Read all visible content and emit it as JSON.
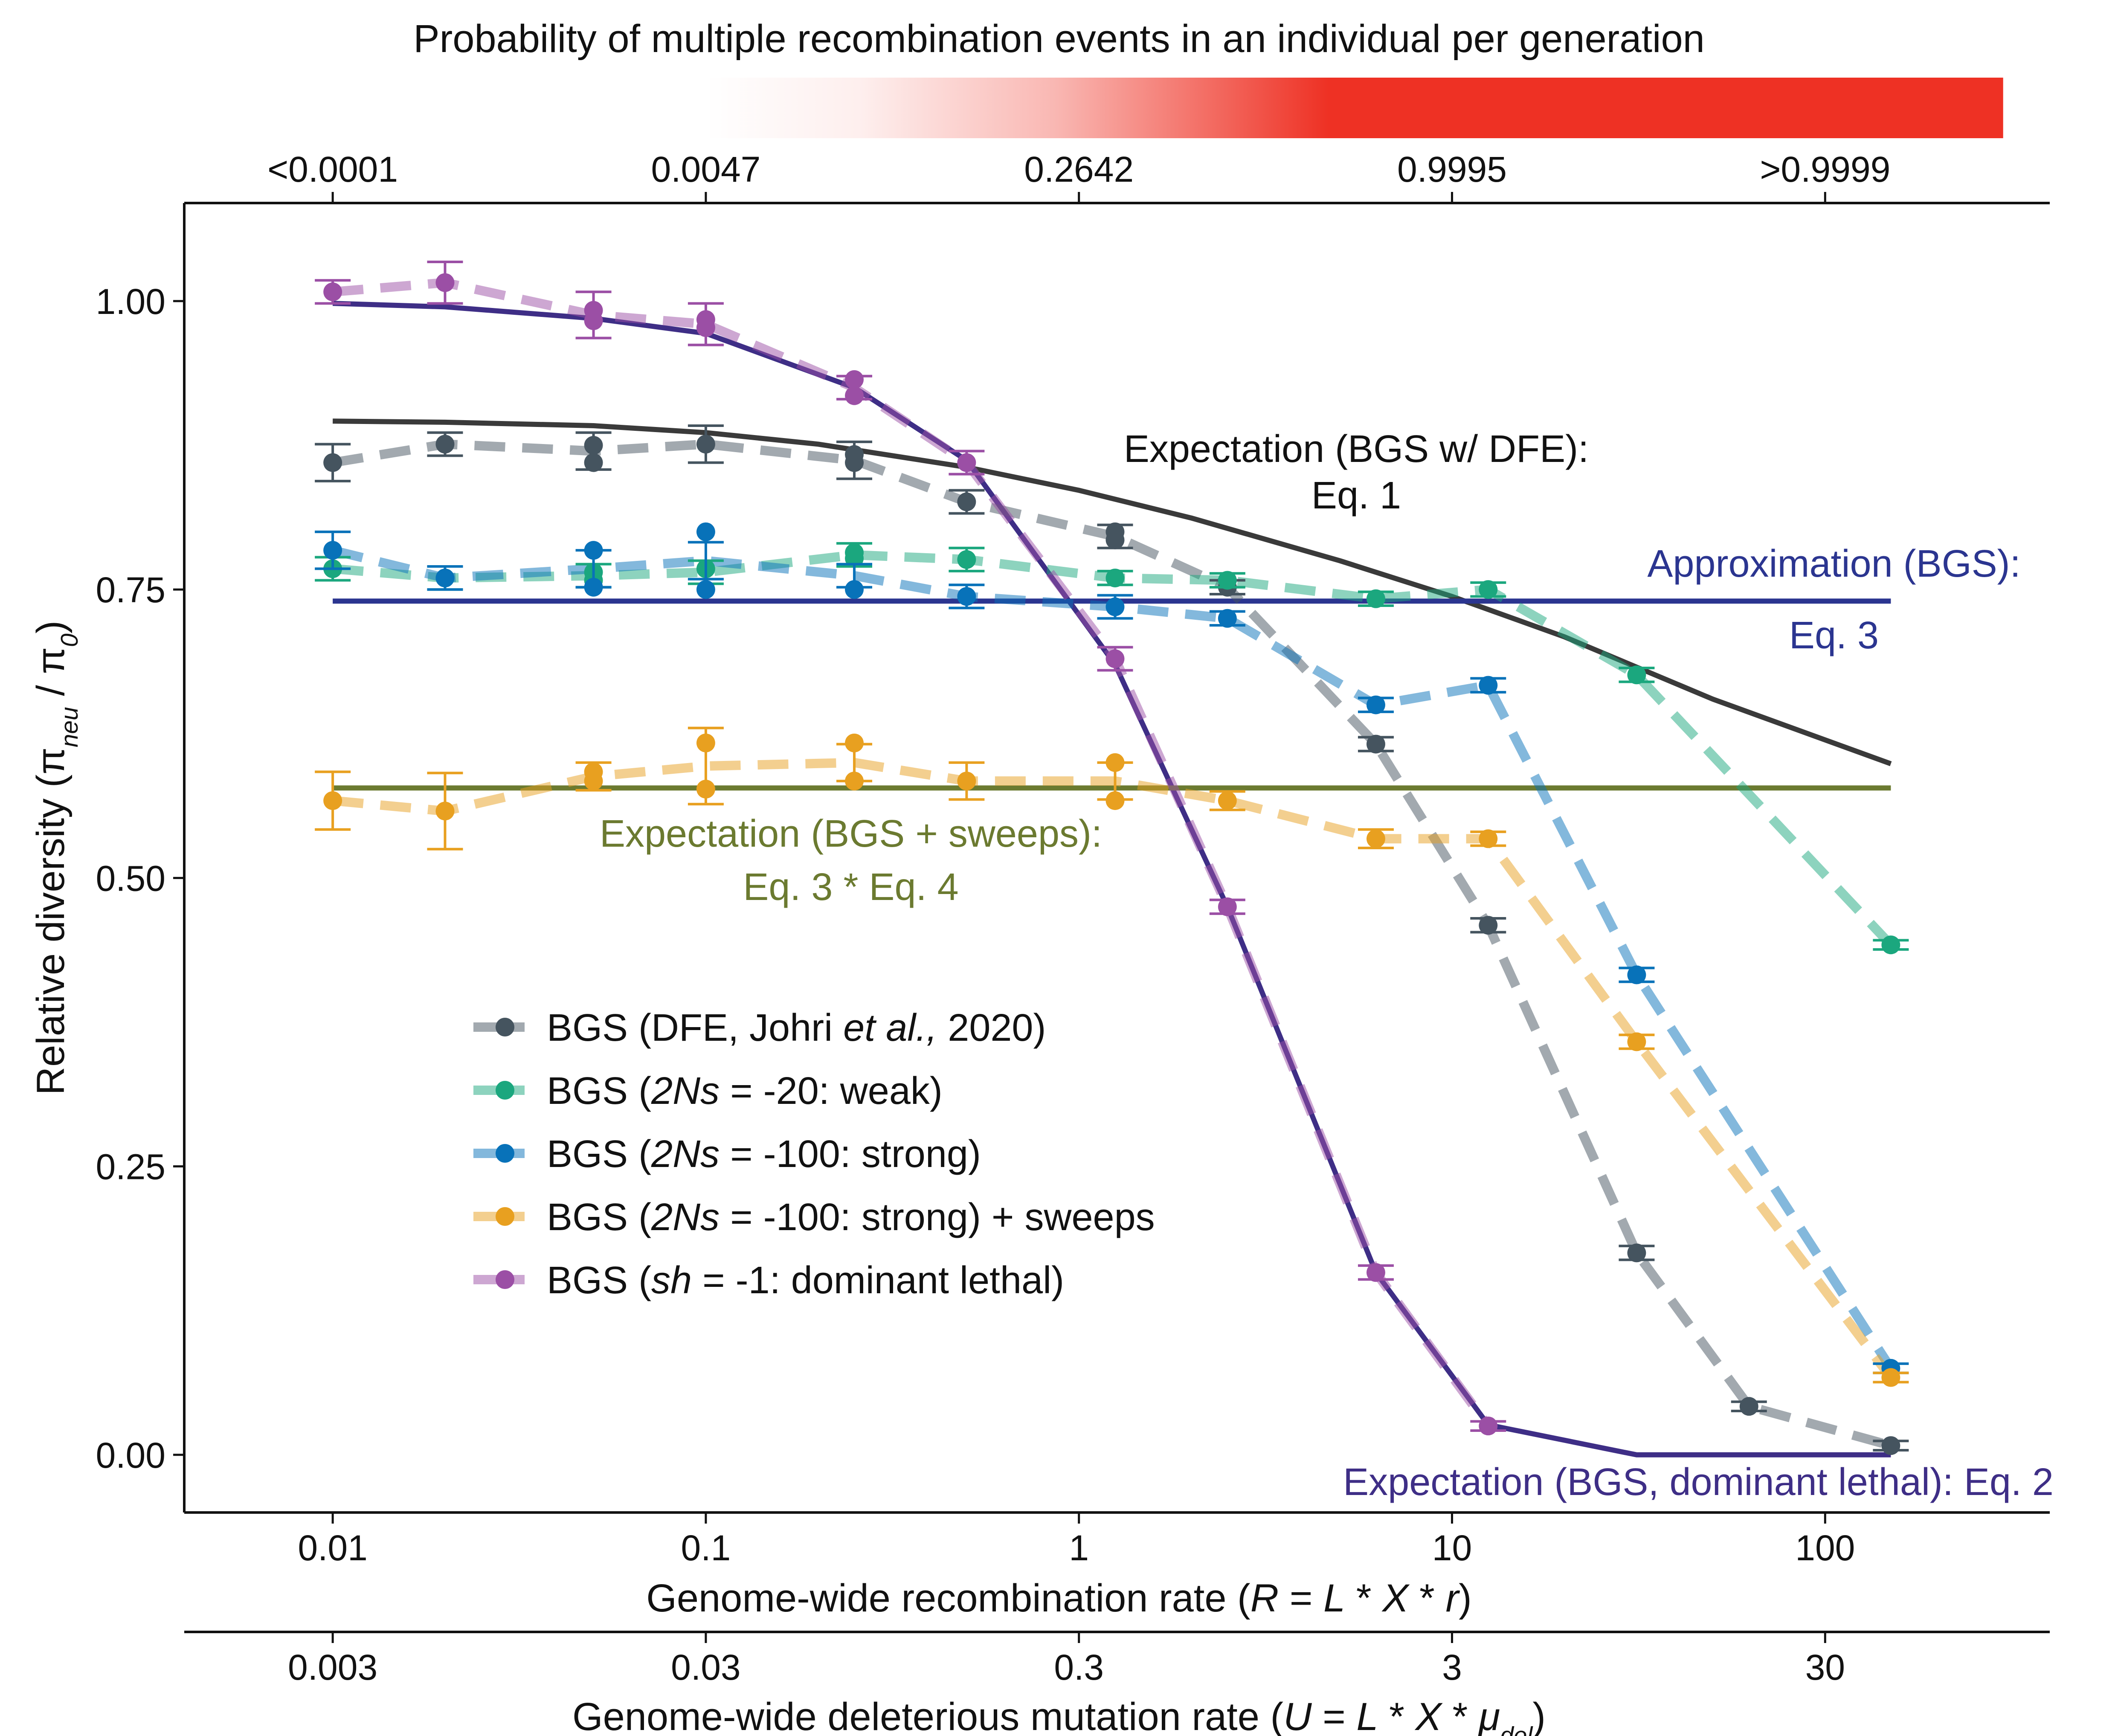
{
  "chart_data": {
    "type": "line",
    "top_title": "Probability of multiple recombination events in an individual per generation",
    "top_ticks": [
      {
        "x": 0.01,
        "label": "<0.0001"
      },
      {
        "x": 0.1,
        "label": "0.0047"
      },
      {
        "x": 1,
        "label": "0.2642"
      },
      {
        "x": 10,
        "label": "0.9995"
      },
      {
        "x": 100,
        "label": ">0.9999"
      }
    ],
    "colorbar": {
      "from_x": 0.1,
      "to_x": 300,
      "low_color": "#ffffff",
      "high_color": "#ee3124"
    },
    "xlabel": {
      "pre": "Genome-wide recombination rate (",
      "R": "R",
      "eq": " = ",
      "L": "L",
      "star1": " * ",
      "X": "X",
      "star2": " * ",
      "r": "r",
      "post": ")"
    },
    "x_scale": "log",
    "xlim": [
      0.004,
      400
    ],
    "x_ticks": [
      {
        "x": 0.01,
        "label": "0.01"
      },
      {
        "x": 0.1,
        "label": "0.1"
      },
      {
        "x": 1,
        "label": "1"
      },
      {
        "x": 10,
        "label": "10"
      },
      {
        "x": 100,
        "label": "100"
      }
    ],
    "x2label": {
      "pre": "Genome-wide deleterious mutation rate (",
      "U": "U",
      "eq": " = ",
      "L": "L",
      "star1": " * ",
      "X": "X",
      "star2": " * ",
      "mu": "μ",
      "sub": "del",
      "post": ")"
    },
    "x2_ticks": [
      {
        "x": 0.01,
        "label": "0.003"
      },
      {
        "x": 0.1,
        "label": "0.03"
      },
      {
        "x": 1,
        "label": "0.3"
      },
      {
        "x": 10,
        "label": "3"
      },
      {
        "x": 100,
        "label": "30"
      }
    ],
    "ylabel": {
      "pre": "Relative diversity (",
      "pi1": "π",
      "sub1": "neu",
      "slash": " / ",
      "pi2": "π",
      "sub2": "0",
      "post": ")"
    },
    "ylim": [
      -0.05,
      1.085
    ],
    "y_ticks": [
      {
        "y": 0.0,
        "label": "0.00"
      },
      {
        "y": 0.25,
        "label": "0.25"
      },
      {
        "y": 0.5,
        "label": "0.50"
      },
      {
        "y": 0.75,
        "label": "0.75"
      },
      {
        "y": 1.0,
        "label": "1.00"
      }
    ],
    "grid": false,
    "series": [
      {
        "key": "dfe",
        "color": "#45545f",
        "x": [
          0.01,
          0.02,
          0.05,
          0.1,
          0.25,
          0.5,
          1.25,
          2.5,
          6.25,
          12.5,
          31.25,
          62.5,
          150
        ],
        "y": [
          0.86,
          0.876,
          0.87,
          0.876,
          0.862,
          0.826,
          0.796,
          0.752,
          0.616,
          0.459,
          0.175,
          0.042,
          0.008
        ],
        "err": [
          0.016,
          0.01,
          0.016,
          0.016,
          0.016,
          0.01,
          0.01,
          0.006,
          0.006,
          0.006,
          0.006,
          0.004,
          0.004
        ],
        "points": [
          {
            "x": 0.01,
            "y": 0.86
          },
          {
            "x": 0.02,
            "y": 0.876
          },
          {
            "x": 0.05,
            "y": 0.875
          },
          {
            "x": 0.05,
            "y": 0.86
          },
          {
            "x": 0.1,
            "y": 0.876
          },
          {
            "x": 0.25,
            "y": 0.867
          },
          {
            "x": 0.25,
            "y": 0.86
          },
          {
            "x": 0.5,
            "y": 0.826
          },
          {
            "x": 1.25,
            "y": 0.8
          },
          {
            "x": 1.25,
            "y": 0.793
          },
          {
            "x": 2.5,
            "y": 0.752
          },
          {
            "x": 6.25,
            "y": 0.616
          },
          {
            "x": 12.5,
            "y": 0.459
          },
          {
            "x": 31.25,
            "y": 0.175
          },
          {
            "x": 62.5,
            "y": 0.042
          },
          {
            "x": 150,
            "y": 0.008
          }
        ]
      },
      {
        "key": "weak",
        "color": "#1ba77e",
        "x": [
          0.01,
          0.02,
          0.05,
          0.1,
          0.25,
          0.5,
          1.25,
          2.5,
          6.25,
          12.5,
          31.25,
          150
        ],
        "y": [
          0.768,
          0.76,
          0.762,
          0.765,
          0.78,
          0.776,
          0.76,
          0.758,
          0.742,
          0.75,
          0.676,
          0.442
        ],
        "err": [
          0.01,
          0.01,
          0.01,
          0.01,
          0.01,
          0.01,
          0.006,
          0.006,
          0.006,
          0.006,
          0.006,
          0.004
        ],
        "points": [
          {
            "x": 0.01,
            "y": 0.768
          },
          {
            "x": 0.02,
            "y": 0.76
          },
          {
            "x": 0.05,
            "y": 0.765
          },
          {
            "x": 0.05,
            "y": 0.758
          },
          {
            "x": 0.1,
            "y": 0.768
          },
          {
            "x": 0.25,
            "y": 0.782
          },
          {
            "x": 0.25,
            "y": 0.777
          },
          {
            "x": 0.5,
            "y": 0.776
          },
          {
            "x": 1.25,
            "y": 0.76
          },
          {
            "x": 2.5,
            "y": 0.758
          },
          {
            "x": 6.25,
            "y": 0.742
          },
          {
            "x": 12.5,
            "y": 0.75
          },
          {
            "x": 31.25,
            "y": 0.676
          },
          {
            "x": 150,
            "y": 0.442
          }
        ]
      },
      {
        "key": "strong",
        "color": "#0872b9",
        "x": [
          0.01,
          0.02,
          0.05,
          0.1,
          0.25,
          0.5,
          1.25,
          2.5,
          6.25,
          12.5,
          31.25,
          150
        ],
        "y": [
          0.784,
          0.76,
          0.768,
          0.775,
          0.762,
          0.744,
          0.735,
          0.725,
          0.65,
          0.667,
          0.416,
          0.075
        ],
        "err": [
          0.016,
          0.01,
          0.016,
          0.016,
          0.01,
          0.01,
          0.01,
          0.006,
          0.006,
          0.006,
          0.006,
          0.004
        ],
        "points": [
          {
            "x": 0.01,
            "y": 0.784
          },
          {
            "x": 0.02,
            "y": 0.76
          },
          {
            "x": 0.05,
            "y": 0.784
          },
          {
            "x": 0.05,
            "y": 0.752
          },
          {
            "x": 0.1,
            "y": 0.8
          },
          {
            "x": 0.1,
            "y": 0.75
          },
          {
            "x": 0.25,
            "y": 0.75
          },
          {
            "x": 0.5,
            "y": 0.744
          },
          {
            "x": 1.25,
            "y": 0.735
          },
          {
            "x": 2.5,
            "y": 0.725
          },
          {
            "x": 6.25,
            "y": 0.65
          },
          {
            "x": 12.5,
            "y": 0.667
          },
          {
            "x": 31.25,
            "y": 0.416
          },
          {
            "x": 150,
            "y": 0.075
          }
        ]
      },
      {
        "key": "sweeps",
        "color": "#e8a020",
        "x": [
          0.01,
          0.02,
          0.05,
          0.1,
          0.25,
          0.5,
          1.25,
          2.5,
          6.25,
          12.5,
          31.25,
          150
        ],
        "y": [
          0.567,
          0.558,
          0.588,
          0.597,
          0.6,
          0.584,
          0.584,
          0.567,
          0.534,
          0.534,
          0.358,
          0.067
        ],
        "err": [
          0.025,
          0.033,
          0.012,
          0.033,
          0.016,
          0.016,
          0.016,
          0.008,
          0.008,
          0.006,
          0.006,
          0.004
        ],
        "points": [
          {
            "x": 0.01,
            "y": 0.567
          },
          {
            "x": 0.02,
            "y": 0.558
          },
          {
            "x": 0.05,
            "y": 0.592
          },
          {
            "x": 0.05,
            "y": 0.584
          },
          {
            "x": 0.1,
            "y": 0.617
          },
          {
            "x": 0.1,
            "y": 0.577
          },
          {
            "x": 0.25,
            "y": 0.617
          },
          {
            "x": 0.25,
            "y": 0.584
          },
          {
            "x": 0.5,
            "y": 0.584
          },
          {
            "x": 1.25,
            "y": 0.6
          },
          {
            "x": 1.25,
            "y": 0.567
          },
          {
            "x": 2.5,
            "y": 0.567
          },
          {
            "x": 6.25,
            "y": 0.534
          },
          {
            "x": 12.5,
            "y": 0.534
          },
          {
            "x": 31.25,
            "y": 0.358
          },
          {
            "x": 150,
            "y": 0.067
          }
        ]
      },
      {
        "key": "lethal",
        "color": "#9b4fa5",
        "x": [
          0.01,
          0.02,
          0.05,
          0.1,
          0.25,
          0.5,
          1.25,
          2.5,
          6.25,
          12.5
        ],
        "y": [
          1.008,
          1.016,
          0.988,
          0.98,
          0.925,
          0.86,
          0.69,
          0.475,
          0.158,
          0.025
        ],
        "err": [
          0.01,
          0.018,
          0.02,
          0.018,
          0.01,
          0.01,
          0.01,
          0.006,
          0.006,
          0.004
        ],
        "points": [
          {
            "x": 0.01,
            "y": 1.008
          },
          {
            "x": 0.02,
            "y": 1.016
          },
          {
            "x": 0.05,
            "y": 0.992
          },
          {
            "x": 0.05,
            "y": 0.983
          },
          {
            "x": 0.1,
            "y": 0.984
          },
          {
            "x": 0.1,
            "y": 0.977
          },
          {
            "x": 0.25,
            "y": 0.932
          },
          {
            "x": 0.25,
            "y": 0.918
          },
          {
            "x": 0.5,
            "y": 0.86
          },
          {
            "x": 1.25,
            "y": 0.69
          },
          {
            "x": 2.5,
            "y": 0.475
          },
          {
            "x": 6.25,
            "y": 0.158
          },
          {
            "x": 12.5,
            "y": 0.025
          }
        ]
      }
    ],
    "expectations": [
      {
        "key": "eq1",
        "color": "#3a3a3a",
        "x": [
          0.01,
          0.02,
          0.05,
          0.1,
          0.2,
          0.5,
          1,
          2,
          5,
          10,
          20,
          50,
          150
        ],
        "y": [
          0.896,
          0.895,
          0.892,
          0.886,
          0.876,
          0.856,
          0.836,
          0.812,
          0.775,
          0.744,
          0.709,
          0.655,
          0.599
        ]
      },
      {
        "key": "eq2",
        "color": "#3e2e86",
        "x": [
          0.01,
          0.02,
          0.05,
          0.1,
          0.25,
          0.5,
          1.25,
          2.5,
          6.25,
          12.5,
          31.25,
          150
        ],
        "y": [
          0.998,
          0.995,
          0.985,
          0.972,
          0.925,
          0.862,
          0.685,
          0.475,
          0.158,
          0.026,
          0.0,
          0.0
        ]
      },
      {
        "key": "eq3",
        "color": "#2b3590",
        "x": [
          0.01,
          150
        ],
        "y": [
          0.74,
          0.74
        ]
      },
      {
        "key": "eq34",
        "color": "#6b7a30",
        "x": [
          0.01,
          150
        ],
        "y": [
          0.578,
          0.578
        ]
      }
    ],
    "annotations": {
      "eq1_line1": "Expectation (BGS w/ DFE):",
      "eq1_line2": "Eq. 1",
      "eq3_line1": "Approximation (BGS):",
      "eq3_line2": "Eq. 3",
      "eq34_line1": "Expectation (BGS + sweeps):",
      "eq34_line2": "Eq. 3 * Eq. 4",
      "eq2_line1": "Expectation (BGS, dominant lethal): Eq. 2"
    },
    "legend": {
      "placement": "lower-left",
      "entries": [
        {
          "key": "dfe",
          "color": "#45545f",
          "parts": [
            {
              "t": "BGS (DFE, Johri "
            },
            {
              "t": "et al.,",
              "i": true
            },
            {
              "t": " 2020)"
            }
          ]
        },
        {
          "key": "weak",
          "color": "#1ba77e",
          "parts": [
            {
              "t": "BGS ("
            },
            {
              "t": "2Ns",
              "i": true
            },
            {
              "t": " = -20: weak)"
            }
          ]
        },
        {
          "key": "strong",
          "color": "#0872b9",
          "parts": [
            {
              "t": "BGS ("
            },
            {
              "t": "2Ns",
              "i": true
            },
            {
              "t": " = -100: strong)"
            }
          ]
        },
        {
          "key": "sweeps",
          "color": "#e8a020",
          "parts": [
            {
              "t": "BGS ("
            },
            {
              "t": "2Ns",
              "i": true
            },
            {
              "t": " = -100: strong) + sweeps"
            }
          ]
        },
        {
          "key": "lethal",
          "color": "#9b4fa5",
          "parts": [
            {
              "t": "BGS ("
            },
            {
              "t": "sh",
              "i": true
            },
            {
              "t": " = -1: dominant lethal)"
            }
          ]
        }
      ]
    }
  }
}
